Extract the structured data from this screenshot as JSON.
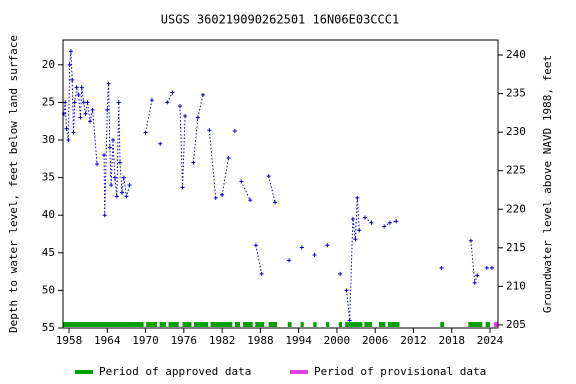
{
  "chart_data": {
    "type": "line",
    "title": "USGS 360219090262501 16N06E03CCC1",
    "y_label": "Depth to water level, feet below land surface",
    "y2_label": "Groundwater level above NAVD 1988, feet",
    "xlim": [
      1957.06,
      2025.25
    ],
    "xticks": [
      1958,
      1964,
      1970,
      1976,
      1982,
      1988,
      1994,
      2000,
      2006,
      2012,
      2018,
      2024
    ],
    "ylim": [
      16.7,
      55
    ],
    "y_inverted": true,
    "yticks": [
      20,
      25,
      30,
      35,
      40,
      45,
      50,
      55
    ],
    "y2lim": [
      204.6,
      241.95
    ],
    "y2ticks": [
      205,
      210,
      215,
      220,
      225,
      230,
      235,
      240
    ],
    "series": [
      {
        "name": "Depth to water level",
        "color": "#0000cc",
        "x": [
          1957.2,
          1957.4,
          1957.6,
          1957.9,
          1958.1,
          1958.3,
          1958.5,
          1958.7,
          1958.9,
          1959.2,
          1959.5,
          1959.8,
          1960.0,
          1960.3,
          1960.6,
          1960.9,
          1961.3,
          1961.7,
          1962.4,
          null,
          1963.5,
          1963.6,
          1964.0,
          1964.2,
          1964.4,
          1964.6,
          1964.9,
          1965.2,
          1965.5,
          1965.8,
          1966.0,
          1966.3,
          1966.6,
          1967.0,
          1967.5,
          null,
          1970.0,
          1971.0,
          null,
          1972.3,
          null,
          1973.4,
          1974.2,
          null,
          1975.4,
          1975.8,
          1976.2,
          null,
          1977.5,
          1978.2,
          1979.0,
          null,
          1980.0,
          1981.0,
          null,
          1982.0,
          1983.0,
          null,
          1984.0,
          null,
          1985.0,
          1986.4,
          null,
          1987.3,
          1988.2,
          null,
          1989.3,
          1990.3,
          null,
          1992.5,
          null,
          1994.5,
          null,
          1996.5,
          null,
          1998.5,
          null,
          2000.5,
          null,
          2001.5,
          2002.0,
          2002.5,
          2002.9,
          2003.2,
          2003.5,
          null,
          2004.4,
          2005.4,
          null,
          2007.4,
          2008.3,
          2009.3,
          null,
          2016.4,
          null,
          2021.0,
          2021.6,
          2022.0,
          null,
          2023.5,
          2024.3
        ],
        "values": [
          26.5,
          25,
          28.5,
          30,
          20,
          18.2,
          22,
          29,
          25,
          23,
          24,
          27,
          23,
          25,
          26.5,
          25,
          27.5,
          26,
          33.2,
          null,
          32,
          40,
          26,
          22.5,
          31,
          36,
          30,
          35,
          37.5,
          25,
          33,
          37,
          35,
          37.5,
          36,
          null,
          29,
          24.7,
          null,
          30.5,
          null,
          25,
          23.7,
          null,
          25.5,
          36.3,
          26.8,
          null,
          33,
          27,
          24,
          null,
          28.7,
          37.7,
          null,
          37.3,
          32.4,
          null,
          28.8,
          null,
          35.5,
          38,
          null,
          44,
          47.8,
          null,
          34.8,
          38.3,
          null,
          46,
          null,
          44.3,
          null,
          45.3,
          null,
          44,
          null,
          47.8,
          null,
          50,
          54,
          40.5,
          43.2,
          37.7,
          42,
          null,
          40.3,
          41,
          null,
          41.5,
          41,
          40.8,
          null,
          47,
          null,
          43.4,
          49,
          48,
          null,
          47,
          47
        ]
      }
    ],
    "periods": [
      {
        "name": "Period of approved data",
        "color": "#00a000",
        "spans": [
          [
            1957.1,
            1969.7
          ],
          [
            1970.1,
            1971.8
          ],
          [
            1972.2,
            1973.2
          ],
          [
            1973.6,
            1975.2
          ],
          [
            1975.8,
            1977.2
          ],
          [
            1977.6,
            1979.8
          ],
          [
            1980.2,
            1983.6
          ],
          [
            1984.0,
            1984.8
          ],
          [
            1985.3,
            1986.8
          ],
          [
            1987.2,
            1988.6
          ],
          [
            1989.3,
            1990.6
          ],
          [
            1992.3,
            1992.9
          ],
          [
            1994.3,
            1994.8
          ],
          [
            1996.3,
            1996.8
          ],
          [
            1998.3,
            1998.8
          ],
          [
            2000.3,
            2000.8
          ],
          [
            2001.3,
            2004.0
          ],
          [
            2004.3,
            2005.5
          ],
          [
            2006.6,
            2007.6
          ],
          [
            2008.0,
            2009.8
          ],
          [
            2016.2,
            2016.8
          ],
          [
            2020.6,
            2022.8
          ],
          [
            2023.3,
            2024.0
          ]
        ]
      },
      {
        "name": "Period of provisional data",
        "color": "#e040e0",
        "spans": [
          [
            2024.6,
            2025.2
          ]
        ]
      }
    ]
  }
}
